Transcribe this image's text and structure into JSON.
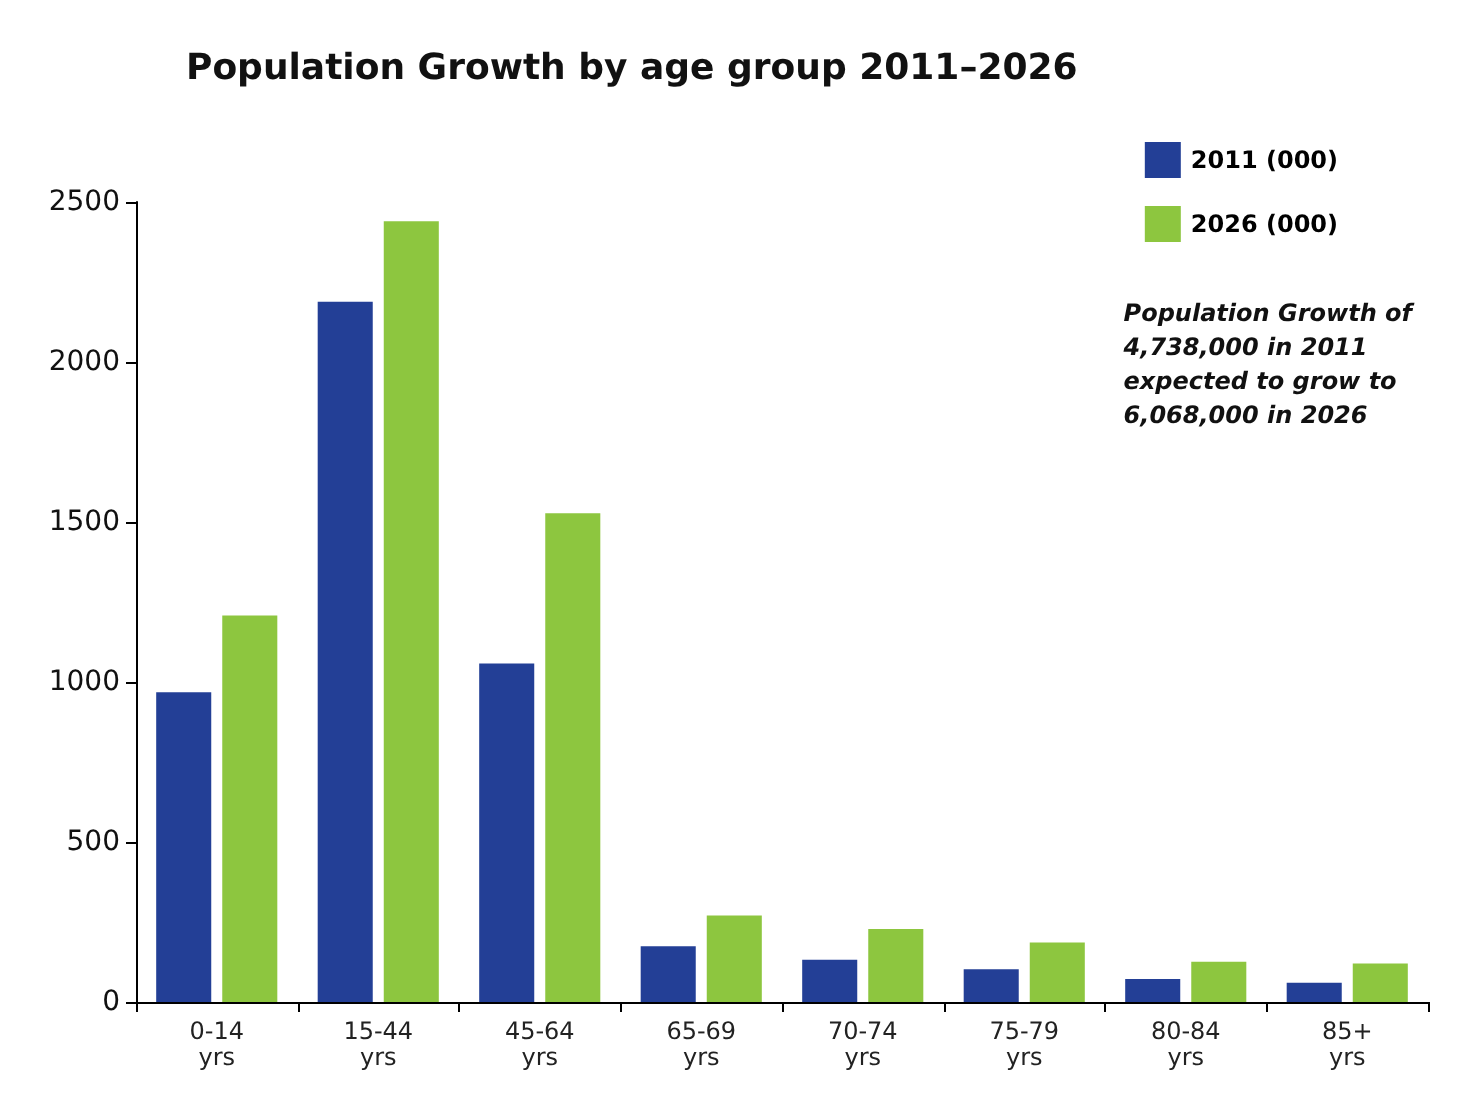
{
  "chart_data": {
    "type": "bar",
    "title": "Population Growth by age group 2011–2026",
    "categories": [
      "0-14\nyrs",
      "15-44\nyrs",
      "45-64\nyrs",
      "65-69\nyrs",
      "70-74\nyrs",
      "75-79\nyrs",
      "80-84\nyrs",
      "85+\nyrs"
    ],
    "series": [
      {
        "name": "2011 (000)",
        "color": "#233f96",
        "values": [
          968,
          2188,
          1058,
          174,
          132,
          102,
          72,
          60
        ]
      },
      {
        "name": "2026 (000)",
        "color": "#8dc63f",
        "values": [
          1208,
          2440,
          1527,
          270,
          228,
          186,
          126,
          120
        ]
      }
    ],
    "ylim": [
      0,
      2500
    ],
    "yticks": [
      0,
      500,
      1000,
      1500,
      2000,
      2500
    ],
    "grid": false,
    "legend": "top right",
    "annotations": [
      "Population Growth of\n4,738,000 in 2011\nexpected to grow to\n6,068,000 in 2026"
    ]
  }
}
